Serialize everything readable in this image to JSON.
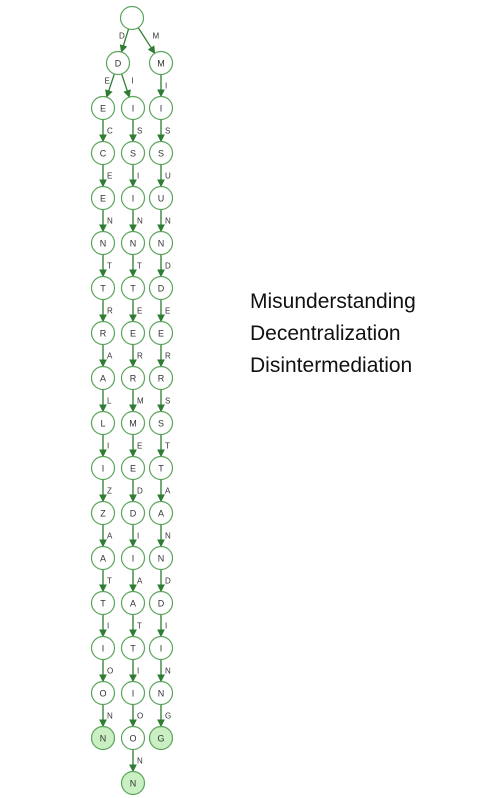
{
  "colors": {
    "edge": "#2e7d32",
    "node_stroke": "#5aa35a",
    "node_fill": "#ffffff",
    "terminal_fill": "#c9efc2",
    "label": "#333333"
  },
  "words": [
    "Misunderstanding",
    "Decentralization",
    "Disintermediation"
  ],
  "trie": {
    "root": "",
    "branches": [
      {
        "first_letter": "D",
        "subbranches": [
          {
            "path": "DECENTRALIZATION"
          },
          {
            "path": "DISINTERMEDIATION"
          }
        ]
      },
      {
        "first_letter": "M",
        "subbranches": [
          {
            "path": "MISUNDERSTANDING"
          }
        ]
      }
    ]
  }
}
